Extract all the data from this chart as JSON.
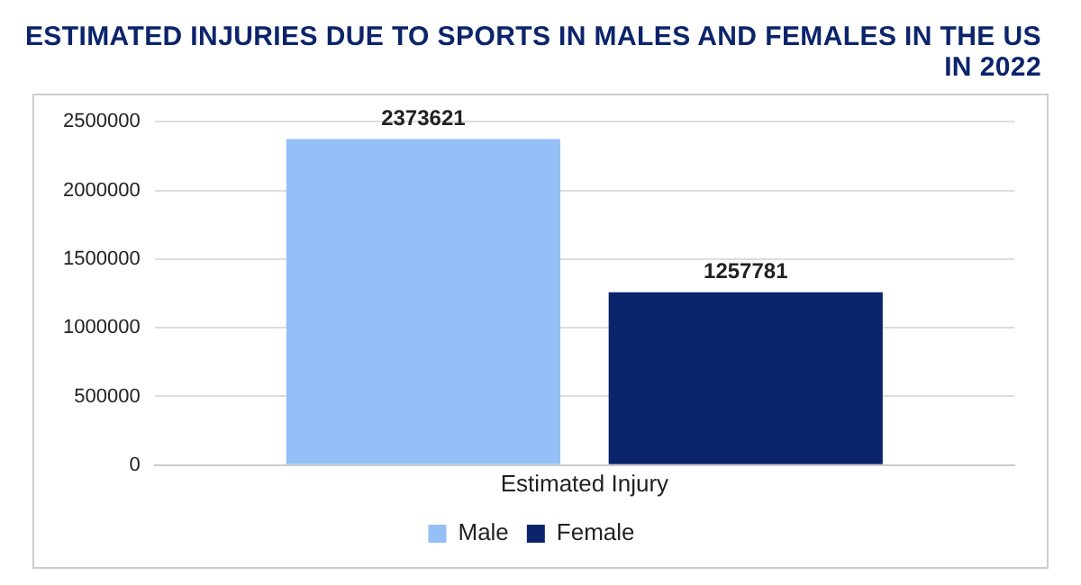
{
  "chart_data": {
    "type": "bar",
    "title": "ESTIMATED INJURIES DUE TO SPORTS IN MALES AND FEMALES IN THE US IN 2022",
    "categories": [
      "Estimated Injury"
    ],
    "series": [
      {
        "name": "Male",
        "color": "#94bff7",
        "values": [
          2373621
        ]
      },
      {
        "name": "Female",
        "color": "#0b246b",
        "values": [
          1257781
        ]
      }
    ],
    "ylim": [
      0,
      2500000
    ],
    "yticks": [
      0,
      500000,
      1000000,
      1500000,
      2000000,
      2500000
    ],
    "grid": "y",
    "legend": "bottom",
    "data_labels": true
  }
}
